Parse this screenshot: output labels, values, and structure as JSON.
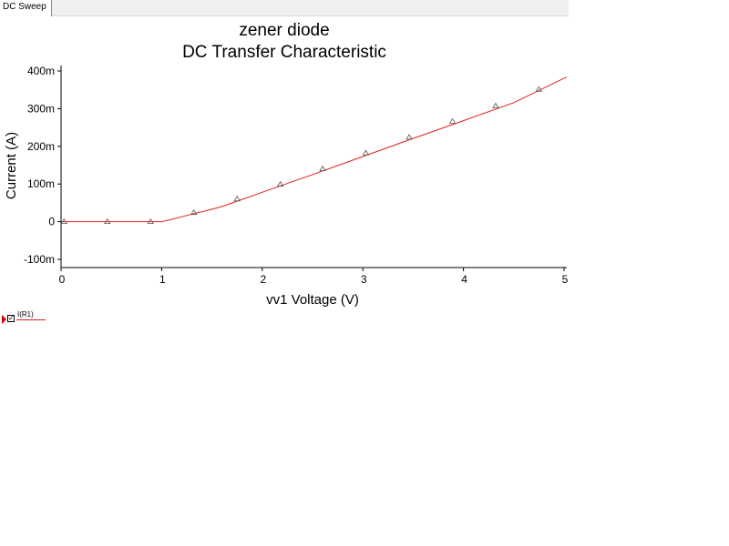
{
  "tabs": [
    {
      "label": "DC Sweep"
    }
  ],
  "chart_data": {
    "type": "line",
    "title": "zener diode",
    "subtitle": "DC Transfer Characteristic",
    "xlabel": "vv1 Voltage (V)",
    "ylabel": "Current (A)",
    "xlim": [
      0,
      5
    ],
    "ylim": [
      -100,
      400
    ],
    "y_unit_scale": "m",
    "x_ticks": [
      0,
      1,
      2,
      3,
      4,
      5
    ],
    "x_tick_labels": [
      "0",
      "1",
      "2",
      "3",
      "4",
      "5"
    ],
    "y_ticks": [
      400,
      300,
      200,
      100,
      0,
      -100
    ],
    "y_tick_labels": [
      "400m",
      "300m",
      "200m",
      "100m",
      "0",
      "-100m"
    ],
    "grid": false,
    "series": [
      {
        "name": "I(R1)",
        "color": "#e02020",
        "marker": "triangle",
        "x": [
          0,
          0.5,
          1.0,
          1.1,
          1.2,
          1.3,
          1.4,
          1.5,
          1.6,
          2.0,
          2.5,
          3.0,
          3.5,
          4.0,
          4.5,
          5.0
        ],
        "y": [
          0,
          0,
          0,
          6,
          13,
          20,
          26,
          33,
          40,
          78,
          125,
          173,
          221,
          268,
          316,
          384
        ],
        "marker_x": [
          0.03,
          0.46,
          0.89,
          1.32,
          1.75,
          2.18,
          2.6,
          3.03,
          3.46,
          3.89,
          4.32,
          4.75
        ],
        "marker_y": [
          0,
          0,
          0,
          24,
          60,
          99,
          140,
          182,
          224,
          266,
          307,
          351
        ]
      }
    ]
  },
  "legend": {
    "items": [
      {
        "label": "I(R1)",
        "color": "#e02020",
        "checked": true,
        "check_glyph": "✓"
      }
    ]
  }
}
